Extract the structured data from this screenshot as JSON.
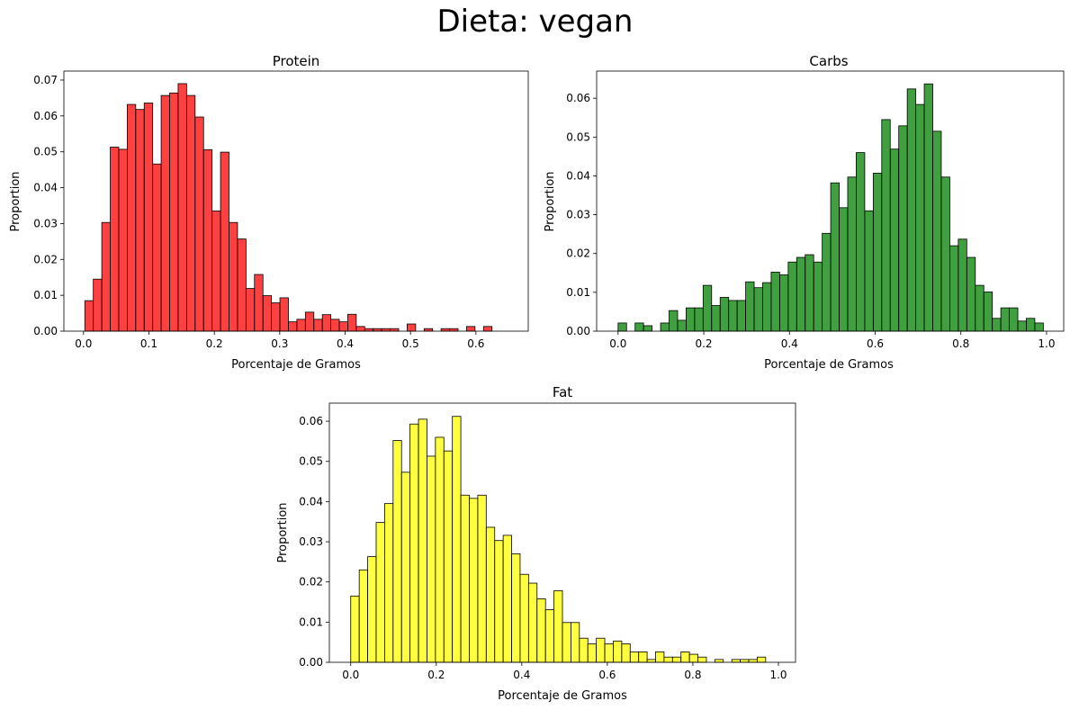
{
  "figure": {
    "suptitle": "Dieta: vegan"
  },
  "chart_data": [
    {
      "type": "bar",
      "title": "Protein",
      "xlabel": "Porcentaje de Gramos",
      "ylabel": "Proportion",
      "color": "#ff0000",
      "bin_start": 0.002,
      "bin_width": 0.01297,
      "xlim": [
        -0.03,
        0.68
      ],
      "ylim": [
        0,
        0.0725
      ],
      "xticks": [
        0.0,
        0.1,
        0.2,
        0.3,
        0.4,
        0.5,
        0.6
      ],
      "xtick_labels": [
        "0.0",
        "0.1",
        "0.2",
        "0.3",
        "0.4",
        "0.5",
        "0.6"
      ],
      "yticks": [
        0.0,
        0.01,
        0.02,
        0.03,
        0.04,
        0.05,
        0.06,
        0.07
      ],
      "ytick_labels": [
        "0.00",
        "0.01",
        "0.02",
        "0.03",
        "0.04",
        "0.05",
        "0.06",
        "0.07"
      ],
      "values": [
        0.0085,
        0.0145,
        0.0303,
        0.0513,
        0.0507,
        0.0632,
        0.0618,
        0.0636,
        0.0466,
        0.0657,
        0.0664,
        0.069,
        0.0657,
        0.0597,
        0.0506,
        0.0335,
        0.0499,
        0.0303,
        0.0257,
        0.0119,
        0.0158,
        0.0099,
        0.0079,
        0.0093,
        0.0026,
        0.0033,
        0.0053,
        0.0033,
        0.0046,
        0.0033,
        0.0026,
        0.0047,
        0.0013,
        0.0007,
        0.0007,
        0.0007,
        0.0007,
        0.0,
        0.002,
        0.0,
        0.0007,
        0.0,
        0.0007,
        0.0007,
        0.0,
        0.0013,
        0.0,
        0.0013
      ]
    },
    {
      "type": "bar",
      "title": "Carbs",
      "xlabel": "Porcentaje de Gramos",
      "ylabel": "Proportion",
      "color": "#008000",
      "bin_start": 0.0,
      "bin_width": 0.01985,
      "xlim": [
        -0.05,
        1.04
      ],
      "ylim": [
        0,
        0.067
      ],
      "xticks": [
        0.0,
        0.2,
        0.4,
        0.6,
        0.8,
        1.0
      ],
      "xtick_labels": [
        "0.0",
        "0.2",
        "0.4",
        "0.6",
        "0.8",
        "1.0"
      ],
      "yticks": [
        0.0,
        0.01,
        0.02,
        0.03,
        0.04,
        0.05,
        0.06
      ],
      "ytick_labels": [
        "0.00",
        "0.01",
        "0.02",
        "0.03",
        "0.04",
        "0.05",
        "0.06"
      ],
      "values": [
        0.0021,
        0.0,
        0.0021,
        0.0014,
        0.0,
        0.0021,
        0.0053,
        0.0028,
        0.006,
        0.006,
        0.0118,
        0.0066,
        0.0087,
        0.0079,
        0.0079,
        0.0127,
        0.0112,
        0.0125,
        0.0152,
        0.0145,
        0.0178,
        0.019,
        0.0197,
        0.0178,
        0.0252,
        0.0382,
        0.0318,
        0.0397,
        0.046,
        0.031,
        0.0407,
        0.0545,
        0.0469,
        0.0529,
        0.0624,
        0.0584,
        0.0637,
        0.0515,
        0.0397,
        0.022,
        0.0237,
        0.019,
        0.0118,
        0.0101,
        0.0033,
        0.006,
        0.006,
        0.0026,
        0.0033,
        0.0021
      ]
    },
    {
      "type": "bar",
      "title": "Fat",
      "xlabel": "Porcentaje de Gramos",
      "ylabel": "Proportion",
      "color": "#ffff00",
      "bin_start": 0.0,
      "bin_width": 0.0198,
      "xlim": [
        -0.05,
        1.04
      ],
      "ylim": [
        0,
        0.0645
      ],
      "xticks": [
        0.0,
        0.2,
        0.4,
        0.6,
        0.8,
        1.0
      ],
      "xtick_labels": [
        "0.0",
        "0.2",
        "0.4",
        "0.6",
        "0.8",
        "1.0"
      ],
      "yticks": [
        0.0,
        0.01,
        0.02,
        0.03,
        0.04,
        0.05,
        0.06
      ],
      "ytick_labels": [
        "0.00",
        "0.01",
        "0.02",
        "0.03",
        "0.04",
        "0.05",
        "0.06"
      ],
      "values": [
        0.0165,
        0.023,
        0.0263,
        0.0348,
        0.0395,
        0.0552,
        0.0473,
        0.0593,
        0.0605,
        0.0513,
        0.056,
        0.0526,
        0.0612,
        0.0416,
        0.0408,
        0.0416,
        0.0336,
        0.0303,
        0.0316,
        0.027,
        0.0219,
        0.0197,
        0.0158,
        0.0131,
        0.0178,
        0.0099,
        0.0099,
        0.006,
        0.0046,
        0.006,
        0.0046,
        0.0053,
        0.0046,
        0.0026,
        0.0026,
        0.0007,
        0.0026,
        0.0013,
        0.0013,
        0.0026,
        0.002,
        0.0013,
        0.0,
        0.0007,
        0.0,
        0.0007,
        0.0007,
        0.0007,
        0.0013
      ]
    }
  ]
}
